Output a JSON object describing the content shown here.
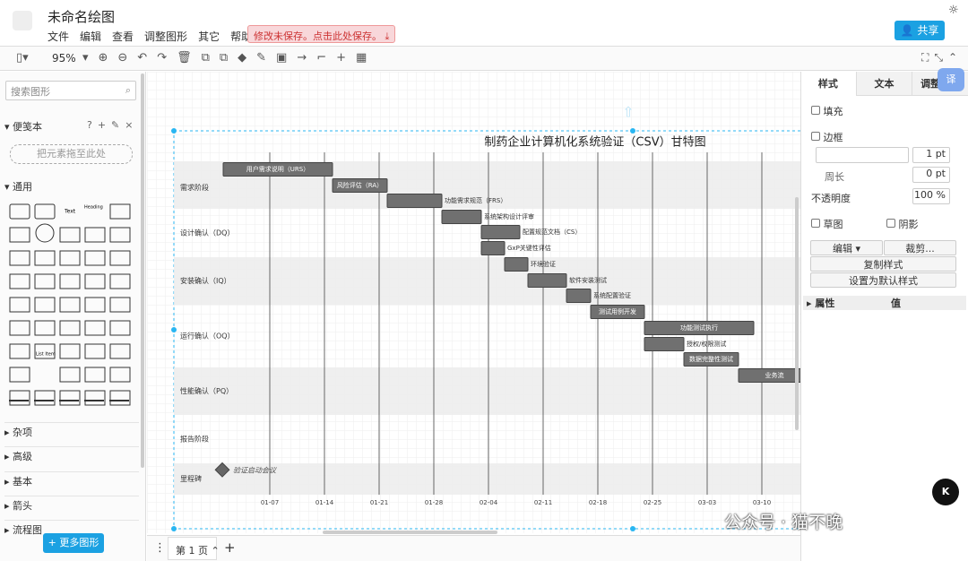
{
  "header": {
    "title": "未命名绘图",
    "menu": [
      "文件",
      "编辑",
      "查看",
      "调整图形",
      "其它",
      "帮助"
    ],
    "unsaved": "修改未保存。点击此处保存。",
    "share": "共享"
  },
  "toolbar": {
    "zoom": "95%"
  },
  "sidebar": {
    "search": "搜索图形",
    "scratchpad": "便笺本",
    "drop_hint": "把元素拖至此处",
    "sections": [
      "通用",
      "杂项",
      "高级",
      "基本",
      "箭头",
      "流程图"
    ],
    "shape_labels": [
      "Text",
      "Heading",
      "List Item"
    ],
    "more_shapes": "+ 更多图形"
  },
  "footer": {
    "page": "第 1 页"
  },
  "format_panel": {
    "tabs": [
      "样式",
      "文本",
      "调整图形"
    ],
    "fill": "填充",
    "stroke": "边框",
    "stroke_width": "1 pt",
    "perimeter": "周长",
    "perimeter_width": "0 pt",
    "opacity": "不透明度",
    "opacity_value": "100 %",
    "sketch": "草图",
    "shadow": "阴影",
    "edit": "编辑",
    "crop": "裁剪...",
    "copy_style": "复制样式",
    "set_default": "设置为默认样式",
    "property": "属性",
    "value": "值"
  },
  "diagram": {
    "title": "制药企业计算机化系统验证（CSV）甘特图",
    "phases": [
      "需求阶段",
      "设计确认（DQ）",
      "安装确认（IQ）",
      "运行确认（OQ）",
      "性能确认（PQ）",
      "报告阶段",
      "里程碑"
    ],
    "dates": [
      "01-07",
      "01-14",
      "01-21",
      "01-28",
      "02-04",
      "02-11",
      "02-18",
      "02-25",
      "03-03",
      "03-10"
    ],
    "tasks": [
      "用户需求说明（URS）",
      "风险评估（RA）",
      "功能需求规范（FRS）",
      "系统架构设计评审",
      "配置规范文档（CS）",
      "GxP关键性评估",
      "环境验证",
      "软件安装测试",
      "系统配置验证",
      "测试用例开发",
      "功能测试执行",
      "授权/权限测试",
      "数据完整性测试",
      "业务流"
    ],
    "milestone": "验证启动会议"
  },
  "watermark": "公众号 · 猫不晚"
}
